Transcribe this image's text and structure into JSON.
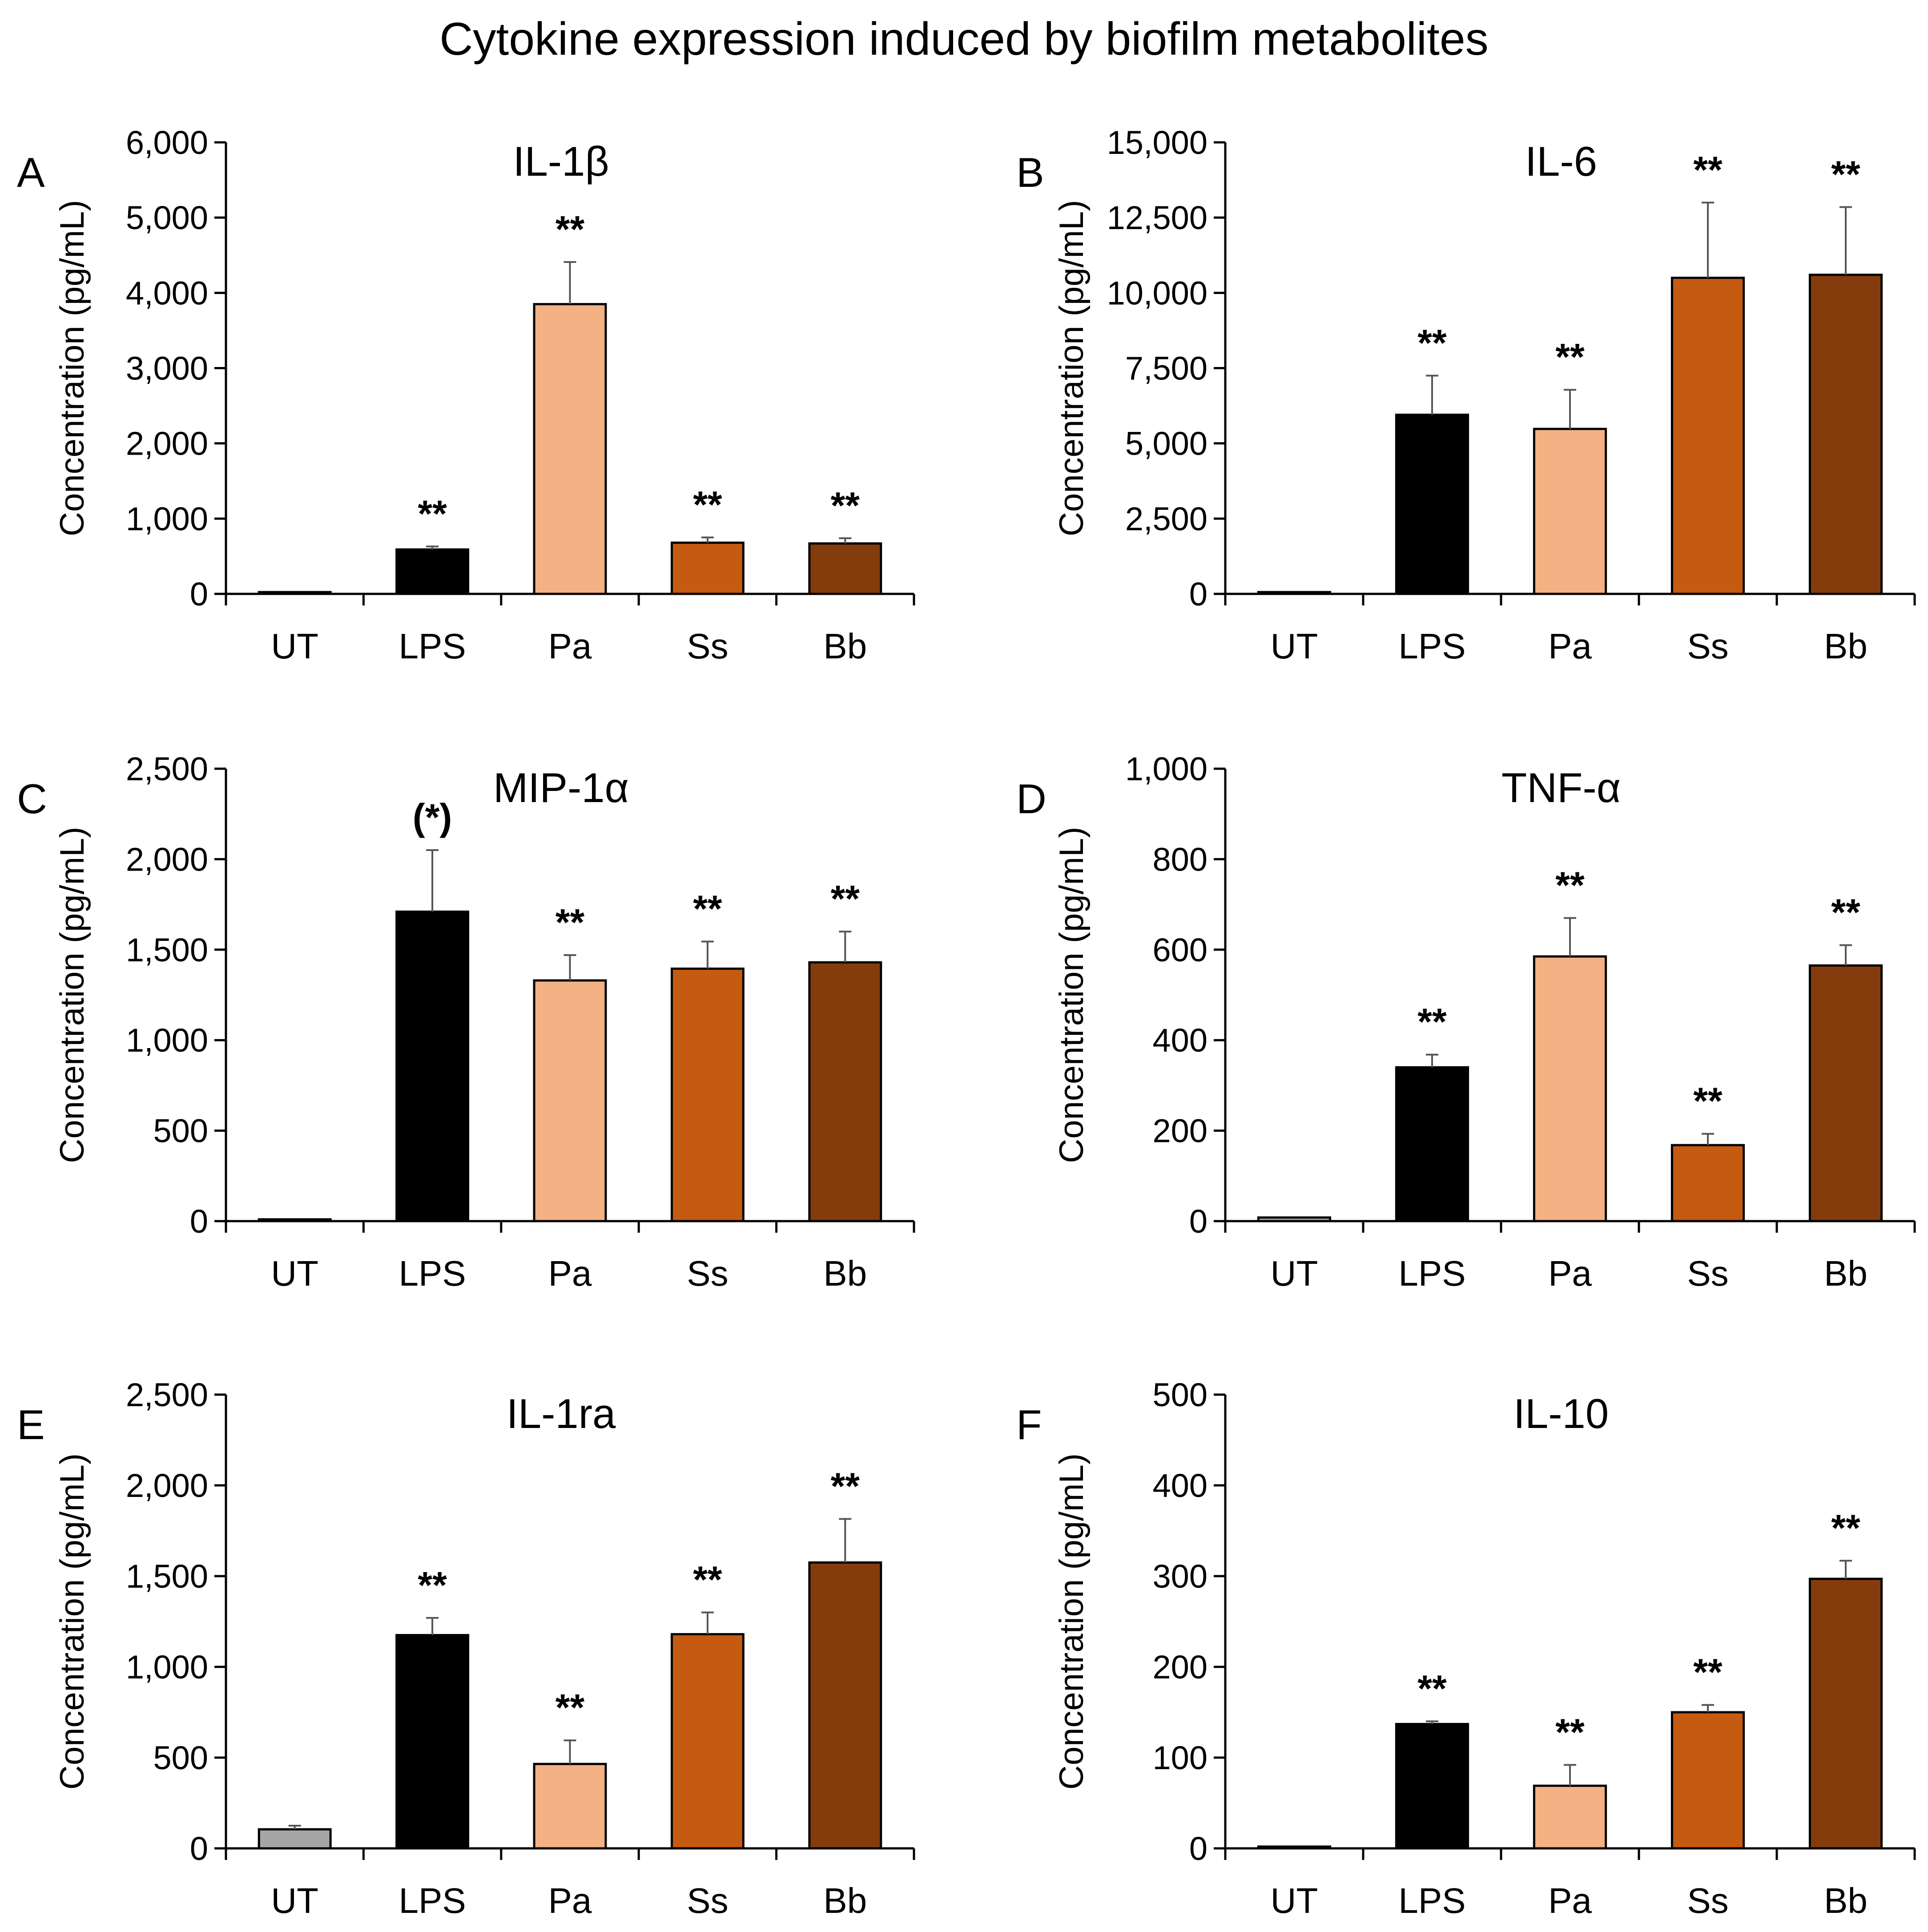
{
  "title": "Cytokine expression induced by biofilm metabolites",
  "colors": {
    "UT": "#a6a6a6",
    "LPS": "#000000",
    "Pa": "#f4b183",
    "Ss": "#c55a11",
    "Bb": "#843c0c"
  },
  "chart_data": [
    {
      "letter": "A",
      "type": "bar",
      "title": "IL-1β",
      "ylabel": "Concentration (pg/mL)",
      "categories": [
        "UT",
        "LPS",
        "Pa",
        "Ss",
        "Bb"
      ],
      "values": [
        5,
        590,
        3850,
        680,
        670
      ],
      "errors": [
        0,
        40,
        560,
        70,
        70
      ],
      "significance": [
        "",
        "**",
        "**",
        "**",
        "**"
      ],
      "ylim": [
        0,
        6000
      ],
      "ticks": [
        0,
        1000,
        2000,
        3000,
        4000,
        5000,
        6000
      ],
      "tick_labels": [
        "0",
        "1,000",
        "2,000",
        "3,000",
        "4,000",
        "5,000",
        "6,000"
      ]
    },
    {
      "letter": "B",
      "type": "bar",
      "title": "IL-6",
      "ylabel": "Concentration (pg/mL)",
      "categories": [
        "UT",
        "LPS",
        "Pa",
        "Ss",
        "Bb"
      ],
      "values": [
        20,
        5950,
        5480,
        10500,
        10600
      ],
      "errors": [
        0,
        1300,
        1300,
        2500,
        2250
      ],
      "significance": [
        "",
        "**",
        "**",
        "**",
        "**"
      ],
      "ylim": [
        0,
        15000
      ],
      "ticks": [
        0,
        2500,
        5000,
        7500,
        10000,
        12500,
        15000
      ],
      "tick_labels": [
        "0",
        "2,500",
        "5,000",
        "7,500",
        "10,000",
        "12,500",
        "15,000"
      ]
    },
    {
      "letter": "C",
      "type": "bar",
      "title": "MIP-1α",
      "ylabel": "Concentration (pg/mL)",
      "categories": [
        "UT",
        "LPS",
        "Pa",
        "Ss",
        "Bb"
      ],
      "values": [
        3,
        1710,
        1330,
        1395,
        1430
      ],
      "errors": [
        0,
        340,
        140,
        150,
        170
      ],
      "significance": [
        "",
        "(*)",
        "**",
        "**",
        "**"
      ],
      "ylim": [
        0,
        2500
      ],
      "ticks": [
        0,
        500,
        1000,
        1500,
        2000,
        2500
      ],
      "tick_labels": [
        "0",
        "500",
        "1,000",
        "1,500",
        "2,000",
        "2,500"
      ]
    },
    {
      "letter": "D",
      "type": "bar",
      "title": "TNF-α",
      "ylabel": "Concentration (pg/mL)",
      "categories": [
        "UT",
        "LPS",
        "Pa",
        "Ss",
        "Bb"
      ],
      "values": [
        8,
        340,
        585,
        168,
        565
      ],
      "errors": [
        0,
        28,
        85,
        25,
        45
      ],
      "significance": [
        "",
        "**",
        "**",
        "**",
        "**"
      ],
      "ylim": [
        0,
        1000
      ],
      "ticks": [
        0,
        200,
        400,
        600,
        800,
        1000
      ],
      "tick_labels": [
        "0",
        "200",
        "400",
        "600",
        "800",
        "1,000"
      ]
    },
    {
      "letter": "E",
      "type": "bar",
      "title": "IL-1ra",
      "ylabel": "Concentration (pg/mL)",
      "categories": [
        "UT",
        "LPS",
        "Pa",
        "Ss",
        "Bb"
      ],
      "values": [
        105,
        1175,
        465,
        1180,
        1575
      ],
      "errors": [
        20,
        95,
        130,
        120,
        240
      ],
      "significance": [
        "",
        "**",
        "**",
        "**",
        "**"
      ],
      "ylim": [
        0,
        2500
      ],
      "ticks": [
        0,
        500,
        1000,
        1500,
        2000,
        2500
      ],
      "tick_labels": [
        "0",
        "500",
        "1,000",
        "1,500",
        "2,000",
        "2,500"
      ]
    },
    {
      "letter": "F",
      "type": "bar",
      "title": "IL-10",
      "ylabel": "Concentration (pg/mL)",
      "categories": [
        "UT",
        "LPS",
        "Pa",
        "Ss",
        "Bb"
      ],
      "values": [
        1,
        137,
        69,
        150,
        297
      ],
      "errors": [
        0,
        3,
        23,
        8,
        20
      ],
      "significance": [
        "",
        "**",
        "**",
        "**",
        "**"
      ],
      "ylim": [
        0,
        500
      ],
      "ticks": [
        0,
        100,
        200,
        300,
        400,
        500
      ],
      "tick_labels": [
        "0",
        "100",
        "200",
        "300",
        "400",
        "500"
      ]
    }
  ]
}
